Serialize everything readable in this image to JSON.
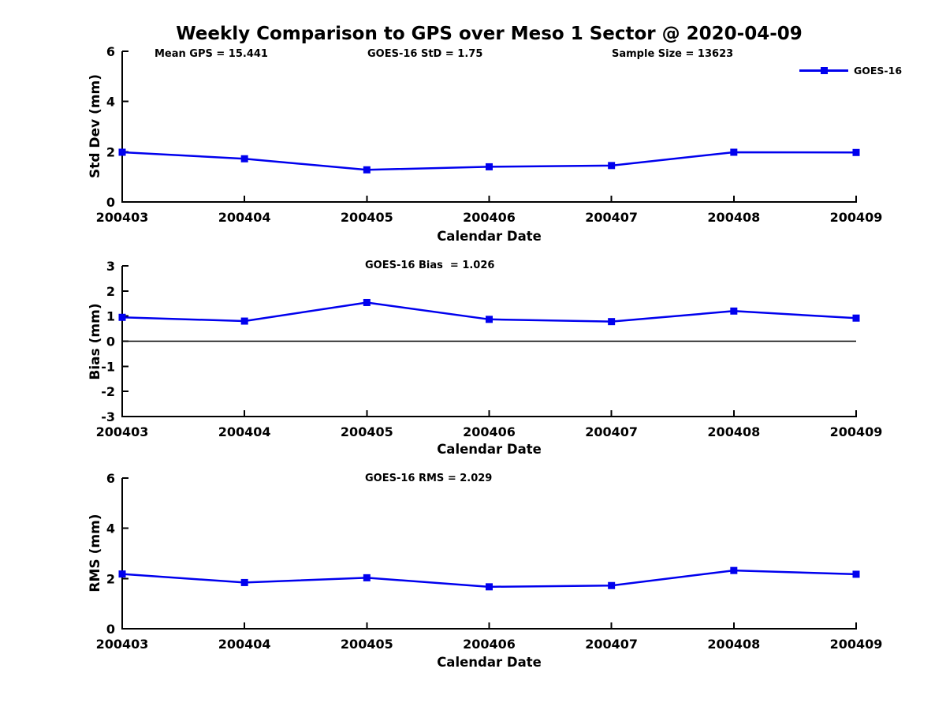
{
  "figure_title": "Weekly Comparison to GPS over Meso 1 Sector @ 2020-04-09",
  "legend": {
    "label": "GOES-16",
    "marker": "filled-square",
    "position": "top-right"
  },
  "colors": {
    "line": "#0000EE",
    "marker": "#0000EE",
    "axis": "#000000",
    "text": "#000000",
    "zero_line": "#000000",
    "background": "#FFFFFF"
  },
  "chart_data": [
    {
      "type": "line",
      "annotations": [
        "Mean GPS = 15.441",
        "GOES-16 StD = 1.75",
        "Sample Size = 13623"
      ],
      "ylabel": "Std Dev (mm)",
      "xlabel": "Calendar Date",
      "categories": [
        "200403",
        "200404",
        "200405",
        "200406",
        "200407",
        "200408",
        "200409"
      ],
      "series": [
        {
          "name": "GOES-16",
          "values": [
            1.98,
            1.72,
            1.28,
            1.4,
            1.45,
            1.98,
            1.97
          ]
        }
      ],
      "ylim": [
        0,
        6
      ],
      "yticks": [
        0,
        2,
        4,
        6
      ],
      "grid": false,
      "zero_line": false
    },
    {
      "type": "line",
      "subtitle": "GOES-16 Bias  = 1.026",
      "ylabel": "Bias (mm)",
      "xlabel": "Calendar Date",
      "categories": [
        "200403",
        "200404",
        "200405",
        "200406",
        "200407",
        "200408",
        "200409"
      ],
      "series": [
        {
          "name": "GOES-16",
          "values": [
            0.95,
            0.8,
            1.54,
            0.87,
            0.78,
            1.2,
            0.92
          ]
        }
      ],
      "ylim": [
        -3,
        3
      ],
      "yticks": [
        -3,
        -2,
        -1,
        0,
        1,
        2,
        3
      ],
      "grid": false,
      "zero_line": true
    },
    {
      "type": "line",
      "subtitle": "GOES-16 RMS = 2.029",
      "ylabel": "RMS (mm)",
      "xlabel": "Calendar Date",
      "categories": [
        "200403",
        "200404",
        "200405",
        "200406",
        "200407",
        "200408",
        "200409"
      ],
      "series": [
        {
          "name": "GOES-16",
          "values": [
            2.18,
            1.84,
            2.03,
            1.67,
            1.72,
            2.32,
            2.17
          ]
        }
      ],
      "ylim": [
        0,
        6
      ],
      "yticks": [
        0,
        2,
        4,
        6
      ],
      "grid": false,
      "zero_line": false
    }
  ]
}
